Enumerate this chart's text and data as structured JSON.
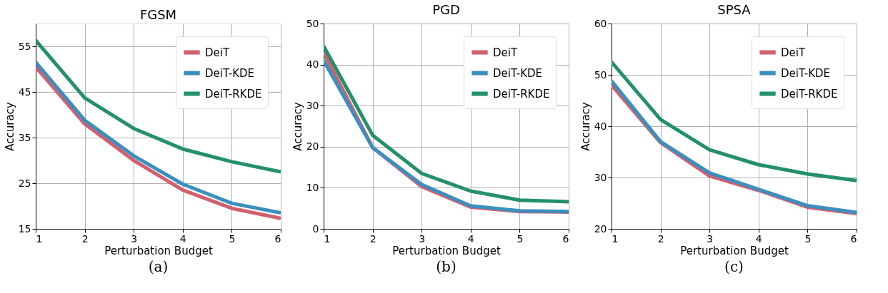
{
  "chart_data": [
    {
      "type": "line",
      "title": "FGSM",
      "xlabel": "Perturbation Budget",
      "ylabel": "Accuracy",
      "x": [
        1,
        2,
        3,
        4,
        5,
        6
      ],
      "xlim": [
        1,
        6
      ],
      "xticks": [
        1,
        2,
        3,
        4,
        5,
        6
      ],
      "ylim": [
        15,
        60
      ],
      "yticks": [
        15,
        25,
        35,
        45,
        55
      ],
      "grid": true,
      "legend": "top right",
      "marker": "none",
      "line_style": "solid",
      "annotations": [
        "(a)"
      ],
      "series": [
        {
          "name": "DeiT",
          "color": "#d1606e",
          "values": [
            50.5,
            38,
            30,
            23.5,
            19.5,
            17.3
          ]
        },
        {
          "name": "DeiT-KDE",
          "color": "#3b8fbf",
          "values": [
            51.5,
            38.8,
            31,
            24.8,
            20.6,
            18.5
          ]
        },
        {
          "name": "DeiT-RKDE",
          "color": "#23906a",
          "values": [
            56.3,
            43.7,
            37,
            32.5,
            29.7,
            27.5
          ]
        }
      ]
    },
    {
      "type": "line",
      "title": "PGD",
      "xlabel": "Perturbation Budget",
      "ylabel": "Accuracy",
      "x": [
        1,
        2,
        3,
        4,
        5,
        6
      ],
      "xlim": [
        1,
        6
      ],
      "xticks": [
        1,
        2,
        3,
        4,
        5,
        6
      ],
      "ylim": [
        0,
        50
      ],
      "yticks": [
        0,
        10,
        20,
        30,
        40,
        50
      ],
      "grid": true,
      "legend": "top right",
      "marker": "none",
      "line_style": "solid",
      "annotations": [
        "(b)"
      ],
      "series": [
        {
          "name": "DeiT",
          "color": "#d1606e",
          "values": [
            43,
            19.8,
            10.3,
            5.3,
            4.2,
            4.1
          ]
        },
        {
          "name": "DeiT-KDE",
          "color": "#3b8fbf",
          "values": [
            41,
            19.8,
            10.8,
            5.6,
            4.4,
            4.2
          ]
        },
        {
          "name": "DeiT-RKDE",
          "color": "#23906a",
          "values": [
            44.5,
            22.8,
            13.5,
            9.2,
            7,
            6.6
          ]
        }
      ]
    },
    {
      "type": "line",
      "title": "SPSA",
      "xlabel": "Perturbation Budget",
      "ylabel": "Accuracy",
      "x": [
        1,
        2,
        3,
        4,
        5,
        6
      ],
      "xlim": [
        1,
        6
      ],
      "xticks": [
        1,
        2,
        3,
        4,
        5,
        6
      ],
      "ylim": [
        20,
        60
      ],
      "yticks": [
        20,
        30,
        40,
        50,
        60
      ],
      "grid": true,
      "legend": "top right",
      "marker": "none",
      "line_style": "solid",
      "annotations": [
        "(c)"
      ],
      "series": [
        {
          "name": "DeiT",
          "color": "#d1606e",
          "values": [
            48,
            36.8,
            30.3,
            27.5,
            24.2,
            23
          ]
        },
        {
          "name": "DeiT-KDE",
          "color": "#3b8fbf",
          "values": [
            48.8,
            37,
            30.9,
            27.7,
            24.5,
            23.2
          ]
        },
        {
          "name": "DeiT-RKDE",
          "color": "#23906a",
          "values": [
            52.5,
            41.3,
            35.4,
            32.5,
            30.7,
            29.4
          ]
        }
      ]
    }
  ]
}
